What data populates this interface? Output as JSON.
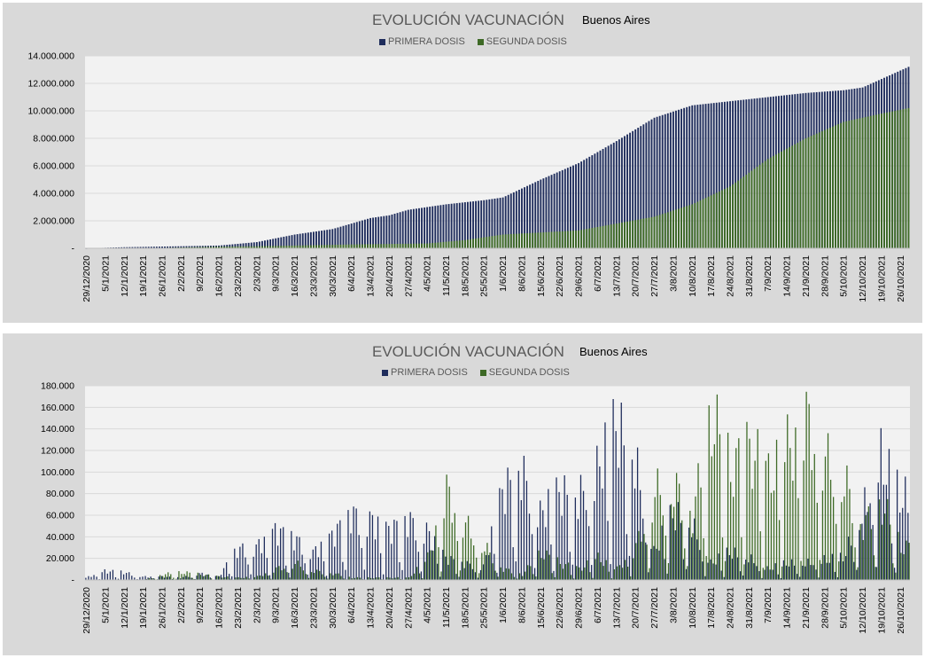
{
  "colors": {
    "primera": "#1f2d5c",
    "segunda": "#3e6a26",
    "plot_bg": "#f2f2f2",
    "panel_bg": "#d9d9d9",
    "gridline": "#d9d9d9"
  },
  "chart_data": [
    {
      "type": "bar",
      "title": "EVOLUCIÓN VACUNACIÓN",
      "subtitle": "Buenos Aires",
      "legend_position": "top",
      "grid": true,
      "ylim": [
        0,
        14000000
      ],
      "yticks": [
        "-",
        "2.000.000",
        "4.000.000",
        "6.000.000",
        "8.000.000",
        "10.000.000",
        "12.000.000",
        "14.000.000"
      ],
      "x_start": "29/12/2020",
      "x_end": "29/10/2021",
      "xticks": [
        "29/12/2020",
        "5/1/2021",
        "12/1/2021",
        "19/1/2021",
        "26/1/2021",
        "2/2/2021",
        "9/2/2021",
        "16/2/2021",
        "23/2/2021",
        "2/3/2021",
        "9/3/2021",
        "16/3/2021",
        "23/3/2021",
        "30/3/2021",
        "6/4/2021",
        "13/4/2021",
        "20/4/2021",
        "27/4/2021",
        "4/5/2021",
        "11/5/2021",
        "18/5/2021",
        "25/5/2021",
        "1/6/2021",
        "8/6/2021",
        "15/6/2021",
        "22/6/2021",
        "29/6/2021",
        "6/7/2021",
        "13/7/2021",
        "20/7/2021",
        "27/7/2021",
        "3/8/2021",
        "10/8/2021",
        "17/8/2021",
        "24/8/2021",
        "31/8/2021",
        "7/9/2021",
        "14/9/2021",
        "21/9/2021",
        "28/9/2021",
        "5/10/2021",
        "12/10/2021",
        "19/10/2021",
        "26/10/2021"
      ],
      "series": [
        {
          "name": "PRIMERA DOSIS",
          "color": "#1f2d5c",
          "points": [
            [
              "29/12/2020",
              0
            ],
            [
              "12/1/2021",
              80000
            ],
            [
              "2/2/2021",
              150000
            ],
            [
              "16/2/2021",
              200000
            ],
            [
              "2/3/2021",
              450000
            ],
            [
              "16/3/2021",
              1000000
            ],
            [
              "30/3/2021",
              1400000
            ],
            [
              "6/4/2021",
              1800000
            ],
            [
              "13/4/2021",
              2200000
            ],
            [
              "20/4/2021",
              2400000
            ],
            [
              "27/4/2021",
              2800000
            ],
            [
              "11/5/2021",
              3200000
            ],
            [
              "25/5/2021",
              3500000
            ],
            [
              "1/6/2021",
              3700000
            ],
            [
              "15/6/2021",
              5000000
            ],
            [
              "29/6/2021",
              6200000
            ],
            [
              "13/7/2021",
              7800000
            ],
            [
              "27/7/2021",
              9500000
            ],
            [
              "10/8/2021",
              10400000
            ],
            [
              "24/8/2021",
              10700000
            ],
            [
              "7/9/2021",
              11000000
            ],
            [
              "21/9/2021",
              11300000
            ],
            [
              "5/10/2021",
              11500000
            ],
            [
              "12/10/2021",
              11700000
            ],
            [
              "29/10/2021",
              13200000
            ]
          ]
        },
        {
          "name": "SEGUNDA DOSIS",
          "color": "#3e6a26",
          "points": [
            [
              "29/12/2020",
              0
            ],
            [
              "26/1/2021",
              30000
            ],
            [
              "16/2/2021",
              120000
            ],
            [
              "2/3/2021",
              150000
            ],
            [
              "16/3/2021",
              200000
            ],
            [
              "6/4/2021",
              280000
            ],
            [
              "4/5/2021",
              350000
            ],
            [
              "18/5/2021",
              600000
            ],
            [
              "1/6/2021",
              1000000
            ],
            [
              "29/6/2021",
              1300000
            ],
            [
              "13/7/2021",
              1800000
            ],
            [
              "27/7/2021",
              2300000
            ],
            [
              "10/8/2021",
              3200000
            ],
            [
              "24/8/2021",
              4500000
            ],
            [
              "7/9/2021",
              6500000
            ],
            [
              "21/9/2021",
              8000000
            ],
            [
              "5/10/2021",
              9200000
            ],
            [
              "19/10/2021",
              9800000
            ],
            [
              "29/10/2021",
              10200000
            ]
          ]
        }
      ]
    },
    {
      "type": "bar",
      "title": "EVOLUCIÓN VACUNACIÓN",
      "subtitle": "Buenos Aires",
      "legend_position": "top",
      "grid": true,
      "ylim": [
        0,
        180000
      ],
      "yticks": [
        "-",
        "20.000",
        "40.000",
        "60.000",
        "80.000",
        "100.000",
        "120.000",
        "140.000",
        "160.000",
        "180.000"
      ],
      "x_start": "29/12/2020",
      "x_end": "29/10/2021",
      "xticks": [
        "29/12/2020",
        "5/1/2021",
        "12/1/2021",
        "19/1/2021",
        "26/1/2021",
        "2/2/2021",
        "9/2/2021",
        "16/2/2021",
        "23/2/2021",
        "2/3/2021",
        "9/3/2021",
        "16/3/2021",
        "23/3/2021",
        "30/3/2021",
        "6/4/2021",
        "13/4/2021",
        "20/4/2021",
        "27/4/2021",
        "4/5/2021",
        "11/5/2021",
        "18/5/2021",
        "25/5/2021",
        "1/6/2021",
        "8/6/2021",
        "15/6/2021",
        "22/6/2021",
        "29/6/2021",
        "6/7/2021",
        "13/7/2021",
        "20/7/2021",
        "27/7/2021",
        "3/8/2021",
        "10/8/2021",
        "17/8/2021",
        "24/8/2021",
        "31/8/2021",
        "7/9/2021",
        "14/9/2021",
        "21/9/2021",
        "28/9/2021",
        "5/10/2021",
        "12/10/2021",
        "19/10/2021",
        "26/10/2021"
      ],
      "series": [
        {
          "name": "PRIMERA DOSIS",
          "color": "#1f2d5c",
          "points": [
            [
              "29/12/2020",
              2000
            ],
            [
              "5/1/2021",
              8000
            ],
            [
              "12/1/2021",
              7000
            ],
            [
              "19/1/2021",
              3000
            ],
            [
              "26/1/2021",
              3000
            ],
            [
              "2/2/2021",
              2000
            ],
            [
              "9/2/2021",
              6000
            ],
            [
              "16/2/2021",
              3000
            ],
            [
              "23/2/2021",
              28000
            ],
            [
              "2/3/2021",
              30000
            ],
            [
              "9/3/2021",
              45000
            ],
            [
              "16/3/2021",
              38000
            ],
            [
              "23/3/2021",
              25000
            ],
            [
              "30/3/2021",
              40000
            ],
            [
              "6/4/2021",
              60000
            ],
            [
              "13/4/2021",
              55000
            ],
            [
              "20/4/2021",
              45000
            ],
            [
              "27/4/2021",
              55000
            ],
            [
              "4/5/2021",
              45000
            ],
            [
              "11/5/2021",
              20000
            ],
            [
              "18/5/2021",
              15000
            ],
            [
              "25/5/2021",
              12000
            ],
            [
              "1/6/2021",
              80000
            ],
            [
              "8/6/2021",
              100000
            ],
            [
              "15/6/2021",
              60000
            ],
            [
              "22/6/2021",
              80000
            ],
            [
              "29/6/2021",
              75000
            ],
            [
              "6/7/2021",
              100000
            ],
            [
              "13/7/2021",
              140000
            ],
            [
              "20/7/2021",
              110000
            ],
            [
              "27/7/2021",
              25000
            ],
            [
              "3/8/2021",
              60000
            ],
            [
              "10/8/2021",
              50000
            ],
            [
              "17/8/2021",
              15000
            ],
            [
              "24/8/2021",
              25000
            ],
            [
              "31/8/2021",
              20000
            ],
            [
              "7/9/2021",
              10000
            ],
            [
              "14/9/2021",
              15000
            ],
            [
              "21/9/2021",
              15000
            ],
            [
              "28/9/2021",
              18000
            ],
            [
              "5/10/2021",
              20000
            ],
            [
              "12/10/2021",
              60000
            ],
            [
              "19/10/2021",
              110000
            ],
            [
              "26/10/2021",
              75000
            ]
          ]
        },
        {
          "name": "SEGUNDA DOSIS",
          "color": "#3e6a26",
          "points": [
            [
              "29/12/2020",
              0
            ],
            [
              "5/1/2021",
              0
            ],
            [
              "12/1/2021",
              0
            ],
            [
              "19/1/2021",
              0
            ],
            [
              "26/1/2021",
              5000
            ],
            [
              "2/2/2021",
              7000
            ],
            [
              "9/2/2021",
              5000
            ],
            [
              "16/2/2021",
              3000
            ],
            [
              "23/2/2021",
              2000
            ],
            [
              "2/3/2021",
              3000
            ],
            [
              "9/3/2021",
              10000
            ],
            [
              "16/3/2021",
              15000
            ],
            [
              "23/3/2021",
              8000
            ],
            [
              "30/3/2021",
              6000
            ],
            [
              "6/4/2021",
              2000
            ],
            [
              "13/4/2021",
              2000
            ],
            [
              "20/4/2021",
              2000
            ],
            [
              "27/4/2021",
              2000
            ],
            [
              "4/5/2021",
              20000
            ],
            [
              "11/5/2021",
              80000
            ],
            [
              "18/5/2021",
              50000
            ],
            [
              "25/5/2021",
              30000
            ],
            [
              "1/6/2021",
              10000
            ],
            [
              "8/6/2021",
              5000
            ],
            [
              "15/6/2021",
              25000
            ],
            [
              "22/6/2021",
              15000
            ],
            [
              "29/6/2021",
              10000
            ],
            [
              "6/7/2021",
              20000
            ],
            [
              "13/7/2021",
              10000
            ],
            [
              "20/7/2021",
              30000
            ],
            [
              "27/7/2021",
              80000
            ],
            [
              "3/8/2021",
              85000
            ],
            [
              "10/8/2021",
              60000
            ],
            [
              "17/8/2021",
              150000
            ],
            [
              "24/8/2021",
              100000
            ],
            [
              "31/8/2021",
              120000
            ],
            [
              "7/9/2021",
              95000
            ],
            [
              "14/9/2021",
              120000
            ],
            [
              "21/9/2021",
              145000
            ],
            [
              "28/9/2021",
              110000
            ],
            [
              "5/10/2021",
              90000
            ],
            [
              "12/10/2021",
              50000
            ],
            [
              "19/10/2021",
              70000
            ],
            [
              "26/10/2021",
              30000
            ]
          ]
        }
      ]
    }
  ]
}
